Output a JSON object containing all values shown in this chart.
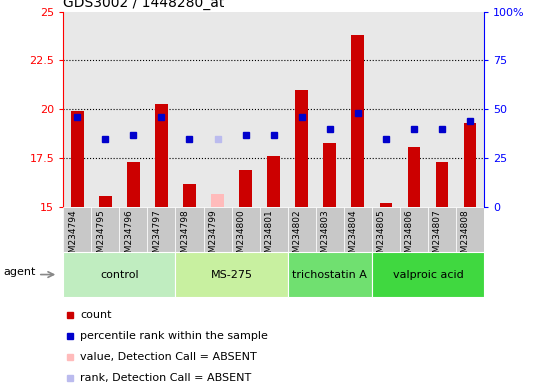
{
  "title": "GDS3002 / 1448280_at",
  "samples": [
    "GSM234794",
    "GSM234795",
    "GSM234796",
    "GSM234797",
    "GSM234798",
    "GSM234799",
    "GSM234800",
    "GSM234801",
    "GSM234802",
    "GSM234803",
    "GSM234804",
    "GSM234805",
    "GSM234806",
    "GSM234807",
    "GSM234808"
  ],
  "bar_values": [
    19.9,
    15.6,
    17.3,
    20.3,
    16.2,
    15.7,
    16.9,
    17.6,
    21.0,
    18.3,
    23.8,
    15.2,
    18.1,
    17.3,
    19.3
  ],
  "bar_absent": [
    false,
    false,
    false,
    false,
    false,
    true,
    false,
    false,
    false,
    false,
    false,
    false,
    false,
    false,
    false
  ],
  "rank_values": [
    46,
    35,
    37,
    46,
    35,
    35,
    37,
    37,
    46,
    40,
    48,
    35,
    40,
    40,
    44
  ],
  "rank_absent": [
    false,
    false,
    false,
    false,
    false,
    true,
    false,
    false,
    false,
    false,
    false,
    false,
    false,
    false,
    false
  ],
  "ylim": [
    15,
    25
  ],
  "ylim_right": [
    0,
    100
  ],
  "yticks_left": [
    15,
    17.5,
    20,
    22.5,
    25
  ],
  "yticks_right": [
    0,
    25,
    50,
    75,
    100
  ],
  "ytick_labels_right": [
    "0",
    "25",
    "50",
    "75",
    "100%"
  ],
  "dotted_lines": [
    17.5,
    20,
    22.5
  ],
  "groups": [
    {
      "label": "control",
      "start": 0,
      "end": 3,
      "color": "#c0edc0"
    },
    {
      "label": "MS-275",
      "start": 4,
      "end": 7,
      "color": "#c8f0a0"
    },
    {
      "label": "trichostatin A",
      "start": 8,
      "end": 10,
      "color": "#70e070"
    },
    {
      "label": "valproic acid",
      "start": 11,
      "end": 14,
      "color": "#40d840"
    }
  ],
  "bar_color_normal": "#cc0000",
  "bar_color_absent": "#ffbbbb",
  "rank_color_normal": "#0000cc",
  "rank_color_absent": "#bbbbee",
  "bar_width": 0.45,
  "rank_marker_size": 22,
  "plot_bg": "#e8e8e8",
  "sample_box_color": "#c8c8c8",
  "agent_label": "agent",
  "legend_items": [
    {
      "color": "#cc0000",
      "label": "count"
    },
    {
      "color": "#0000cc",
      "label": "percentile rank within the sample"
    },
    {
      "color": "#ffbbbb",
      "label": "value, Detection Call = ABSENT"
    },
    {
      "color": "#bbbbee",
      "label": "rank, Detection Call = ABSENT"
    }
  ]
}
